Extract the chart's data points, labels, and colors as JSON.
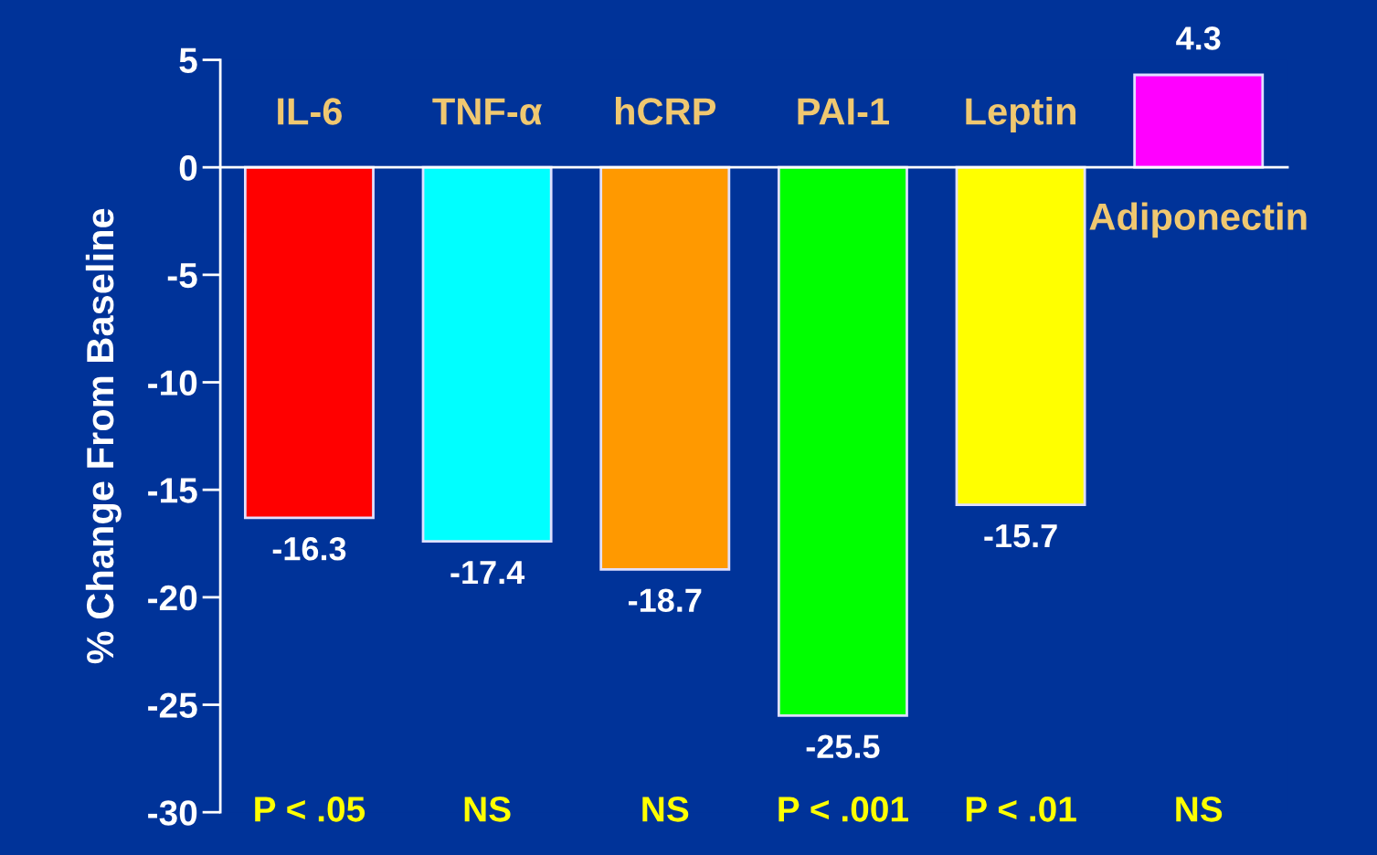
{
  "chart_data": {
    "type": "bar",
    "ylabel": "% Change From Baseline",
    "categories": [
      "IL-6",
      "TNF-α",
      "hCRP",
      "PAI-1",
      "Leptin",
      "Adiponectin"
    ],
    "values": [
      -16.3,
      -17.4,
      -18.7,
      -25.5,
      -15.7,
      4.3
    ],
    "colors": [
      "#ff0000",
      "#00ffff",
      "#ff9900",
      "#00ff00",
      "#ffff00",
      "#ff00ff"
    ],
    "ylim": [
      -30,
      5
    ],
    "yticks": [
      -30,
      -25,
      -20,
      -15,
      -10,
      -5,
      0,
      5
    ],
    "data_labels": true,
    "grid": false,
    "legend": false,
    "annotations": [
      "P < .05",
      "NS",
      "NS",
      "P < .001",
      "P < .01",
      "NS"
    ]
  }
}
